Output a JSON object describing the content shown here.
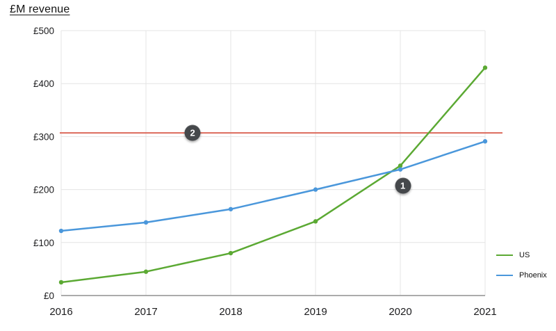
{
  "title": "£M revenue",
  "chart_data": {
    "type": "line",
    "categories": [
      "2016",
      "2017",
      "2018",
      "2019",
      "2020",
      "2021"
    ],
    "series": [
      {
        "name": "US",
        "color": "#5BA933",
        "values": [
          25,
          45,
          80,
          140,
          245,
          430
        ]
      },
      {
        "name": "Phoenix",
        "color": "#4A97DB",
        "values": [
          122,
          138,
          163,
          200,
          238,
          291
        ]
      }
    ],
    "threshold_line": {
      "value": 307,
      "color": "#DC6A5B"
    },
    "y_ticks": [
      0,
      100,
      200,
      300,
      400,
      500
    ],
    "y_tick_labels": [
      "£0",
      "£100",
      "£200",
      "£300",
      "£400",
      "£500"
    ],
    "ylim": [
      0,
      500
    ],
    "grid": true,
    "legend_position": "right",
    "annotations": [
      {
        "label": "1",
        "x": 4.03,
        "value": 207
      },
      {
        "label": "2",
        "x": 1.55,
        "value": 307
      }
    ],
    "colors": {
      "gridline": "#e4e4e4",
      "axis_line": "#ababab",
      "tick_text": "#1c1c1e",
      "badge_bg": "#45484b",
      "badge_text": "#ffffff"
    }
  }
}
